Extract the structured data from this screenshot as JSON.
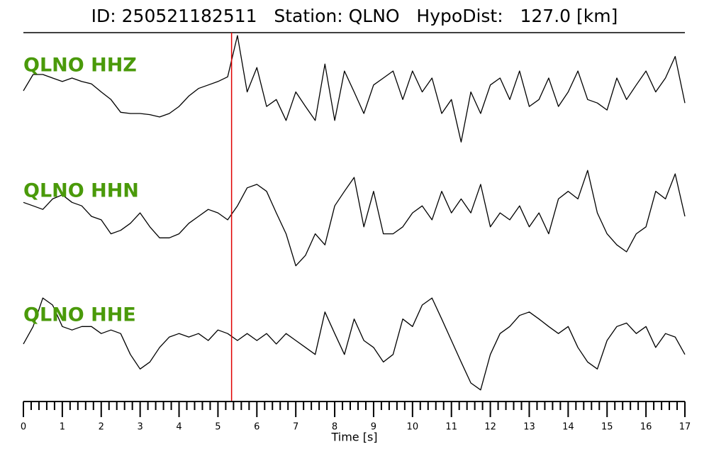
{
  "chart_data": {
    "type": "line",
    "title": "ID: 250521182511   Station: QLNO   HypoDist:   127.0 [km]",
    "xlabel": "Time [s]",
    "xlim": [
      0,
      17
    ],
    "xticks": [
      0,
      1,
      2,
      3,
      4,
      5,
      6,
      7,
      8,
      9,
      10,
      11,
      12,
      13,
      14,
      15,
      16,
      17
    ],
    "xminorticks": [
      0.2,
      0.4,
      0.6,
      0.8,
      1.2,
      1.4,
      1.6,
      1.8,
      2.2,
      2.4,
      2.6,
      2.8,
      3.2,
      3.4,
      3.6,
      3.8,
      4.2,
      4.4,
      4.6,
      4.8,
      5.2,
      5.4,
      5.6,
      5.8,
      6.2,
      6.4,
      6.6,
      6.8,
      7.2,
      7.4,
      7.6,
      7.8,
      8.2,
      8.4,
      8.6,
      8.8,
      9.2,
      9.4,
      9.6,
      9.8,
      10.2,
      10.4,
      10.6,
      10.8,
      11.2,
      11.4,
      11.6,
      11.8,
      12.2,
      12.4,
      12.6,
      12.8,
      13.2,
      13.4,
      13.6,
      13.8,
      14.2,
      14.4,
      14.6,
      14.8,
      15.2,
      15.4,
      15.6,
      15.8,
      16.2,
      16.4,
      16.6,
      16.8
    ],
    "ylim": [
      -1,
      1
    ],
    "x": [
      0,
      0.25,
      0.5,
      0.75,
      1,
      1.25,
      1.5,
      1.75,
      2,
      2.25,
      2.5,
      2.75,
      3,
      3.25,
      3.5,
      3.75,
      4,
      4.25,
      4.5,
      4.75,
      5,
      5.25,
      5.5,
      5.75,
      6,
      6.25,
      6.5,
      6.75,
      7,
      7.25,
      7.5,
      7.75,
      8,
      8.25,
      8.5,
      8.75,
      9,
      9.25,
      9.5,
      9.75,
      10,
      10.25,
      10.5,
      10.75,
      11,
      11.25,
      11.5,
      11.75,
      12,
      12.25,
      12.5,
      12.75,
      13,
      13.25,
      13.5,
      13.75,
      14,
      14.25,
      14.5,
      14.75,
      15,
      15.25,
      15.5,
      15.75,
      16,
      16.25,
      16.5,
      16.75,
      17
    ],
    "label_color": "#4a9a0a",
    "series": [
      {
        "name": "QLNO HHZ",
        "color": "#000000",
        "values": [
          0,
          0.28,
          0.28,
          0.22,
          0.16,
          0.22,
          0.16,
          0.12,
          -0.02,
          -0.15,
          -0.37,
          -0.39,
          -0.39,
          -0.41,
          -0.45,
          -0.39,
          -0.27,
          -0.09,
          0.04,
          0.1,
          0.16,
          0.24,
          0.95,
          -0.02,
          0.4,
          -0.27,
          -0.15,
          -0.51,
          -0.02,
          -0.27,
          -0.51,
          0.46,
          -0.51,
          0.34,
          -0.02,
          -0.39,
          0.1,
          0.22,
          0.34,
          -0.15,
          0.34,
          -0.02,
          0.22,
          -0.39,
          -0.15,
          -0.88,
          -0.02,
          -0.39,
          0.1,
          0.22,
          -0.15,
          0.34,
          -0.27,
          -0.15,
          0.22,
          -0.27,
          -0.02,
          0.34,
          -0.15,
          -0.21,
          -0.33,
          0.22,
          -0.15,
          0.1,
          0.34,
          -0.02,
          0.22,
          0.59,
          -0.21
        ]
      },
      {
        "name": "QLNO HHN",
        "color": "#000000",
        "values": [
          0.24,
          0.18,
          0.12,
          0.3,
          0.37,
          0.24,
          0.18,
          0,
          -0.06,
          -0.3,
          -0.24,
          -0.12,
          0.06,
          -0.18,
          -0.37,
          -0.37,
          -0.3,
          -0.12,
          0,
          0.12,
          0.06,
          -0.06,
          0.18,
          0.49,
          0.55,
          0.43,
          0.06,
          -0.3,
          -0.85,
          -0.67,
          -0.3,
          -0.49,
          0.18,
          0.43,
          0.67,
          -0.18,
          0.43,
          -0.3,
          -0.3,
          -0.18,
          0.06,
          0.18,
          -0.06,
          0.43,
          0.06,
          0.3,
          0.06,
          0.55,
          -0.18,
          0.06,
          -0.06,
          0.18,
          -0.18,
          0.06,
          -0.3,
          0.3,
          0.43,
          0.3,
          0.79,
          0.06,
          -0.3,
          -0.49,
          -0.61,
          -0.3,
          -0.18,
          0.43,
          0.3,
          0.73,
          0
        ]
      },
      {
        "name": "QLNO HHE",
        "color": "#000000",
        "values": [
          -0.06,
          0.24,
          0.73,
          0.61,
          0.24,
          0.18,
          0.24,
          0.24,
          0.12,
          0.18,
          0.12,
          -0.24,
          -0.49,
          -0.37,
          -0.12,
          0.06,
          0.12,
          0.06,
          0.12,
          0,
          0.18,
          0.12,
          0,
          0.12,
          0,
          0.12,
          -0.06,
          0.12,
          0,
          -0.12,
          -0.24,
          0.49,
          0.12,
          -0.24,
          0.37,
          0,
          -0.12,
          -0.37,
          -0.24,
          0.37,
          0.24,
          0.61,
          0.73,
          0.37,
          0,
          -0.37,
          -0.73,
          -0.85,
          -0.24,
          0.12,
          0.24,
          0.43,
          0.49,
          0.37,
          0.24,
          0.12,
          0.24,
          -0.12,
          -0.37,
          -0.49,
          0,
          0.24,
          0.3,
          0.12,
          0.24,
          -0.12,
          0.12,
          0.06,
          -0.24
        ]
      }
    ],
    "vlines": [
      {
        "x": 5.35,
        "color": "#e00000"
      }
    ]
  }
}
